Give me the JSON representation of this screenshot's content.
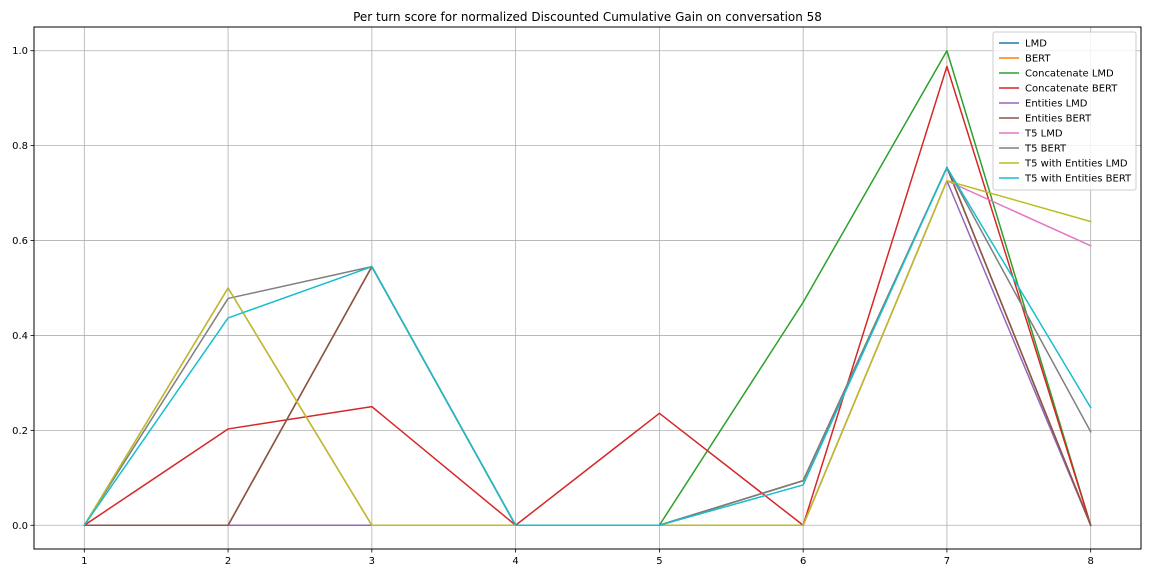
{
  "chart_data": {
    "type": "line",
    "title": "Per turn score for normalized Discounted Cumulative Gain on conversation 58",
    "xlabel": "",
    "ylabel": "",
    "x": [
      1,
      2,
      3,
      4,
      5,
      6,
      7,
      8
    ],
    "xticks": [
      "1",
      "2",
      "3",
      "4",
      "5",
      "6",
      "7",
      "8"
    ],
    "yticks": [
      "0.0",
      "0.2",
      "0.4",
      "0.6",
      "0.8",
      "1.0"
    ],
    "ytick_values": [
      0.0,
      0.2,
      0.4,
      0.6,
      0.8,
      1.0
    ],
    "xlim": [
      0.65,
      8.35
    ],
    "ylim": [
      -0.05,
      1.05
    ],
    "grid": true,
    "legend_position": "top-right",
    "series": [
      {
        "name": "LMD",
        "color": "#1f77b4",
        "values": [
          0,
          0,
          0.545,
          0,
          0,
          0.094,
          0.754,
          0
        ]
      },
      {
        "name": "BERT",
        "color": "#ff7f0e",
        "values": [
          0,
          0,
          0.545,
          0,
          0,
          0.094,
          0.754,
          0
        ]
      },
      {
        "name": "Concatenate LMD",
        "color": "#2ca02c",
        "values": [
          0,
          0,
          0,
          0,
          0,
          0.47,
          1.0,
          0
        ]
      },
      {
        "name": "Concatenate BERT",
        "color": "#d62728",
        "values": [
          0,
          0.203,
          0.25,
          0,
          0.236,
          0,
          0.967,
          0
        ]
      },
      {
        "name": "Entities LMD",
        "color": "#9467bd",
        "values": [
          0,
          0,
          0,
          0,
          0,
          0,
          0.726,
          0
        ]
      },
      {
        "name": "Entities BERT",
        "color": "#8c564b",
        "values": [
          0,
          0,
          0.545,
          0,
          0,
          0.094,
          0.754,
          0
        ]
      },
      {
        "name": "T5 LMD",
        "color": "#e377c2",
        "values": [
          0,
          0.5,
          0,
          0,
          0,
          0,
          0.726,
          0.589
        ]
      },
      {
        "name": "T5 BERT",
        "color": "#7f7f7f",
        "values": [
          0,
          0.478,
          0.545,
          0,
          0,
          0.094,
          0.754,
          0.197
        ]
      },
      {
        "name": "T5 with Entities LMD",
        "color": "#bcbd22",
        "values": [
          0,
          0.5,
          0,
          0,
          0,
          0,
          0.726,
          0.64
        ]
      },
      {
        "name": "T5 with Entities BERT",
        "color": "#17becf",
        "values": [
          0,
          0.437,
          0.545,
          0,
          0,
          0.085,
          0.754,
          0.248
        ]
      }
    ]
  }
}
